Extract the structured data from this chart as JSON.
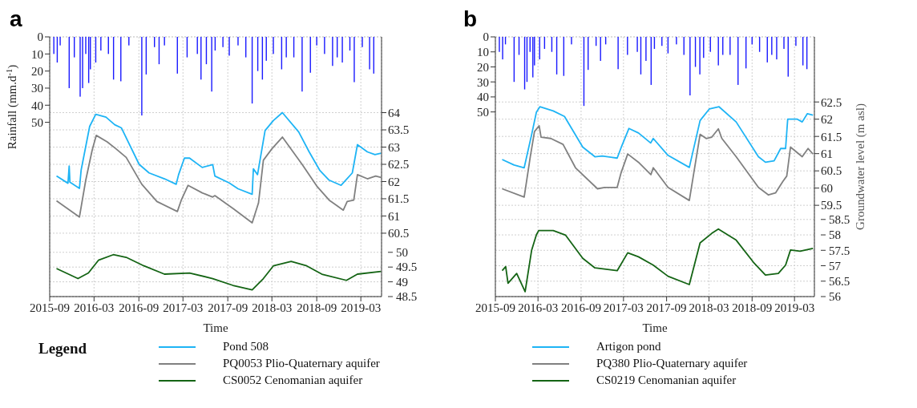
{
  "chart_data": [
    {
      "type": "line",
      "title": "a",
      "xlabel": "Time",
      "ylabel": "Rainfall (mm.d$^{-1}$)",
      "legend_title": "Legend",
      "legend": "bottom",
      "grid": true,
      "xlim": [
        "2015-09-01",
        "2019-05-25"
      ],
      "xticks": [
        "2015-09",
        "2016-03",
        "2016-09",
        "2017-03",
        "2017-09",
        "2018-03",
        "2018-09",
        "2019-03"
      ],
      "ylim": [
        152,
        0
      ],
      "yticks": [
        0,
        10,
        20,
        30,
        40,
        50
      ],
      "y2lim": [
        58.66,
        66.2
      ],
      "y2ticks": [
        60.5,
        61,
        61.5,
        62,
        62.5,
        63,
        63.5,
        64
      ],
      "y3lim": [
        48.5,
        57.3
      ],
      "y3ticks": [
        48.5,
        49,
        49.5,
        50
      ],
      "series": [
        {
          "type": "bar",
          "axis": "y",
          "color": "#1a1aff",
          "x": [
            "2015-09-18",
            "2015-10-02",
            "2015-10-14",
            "2015-11-20",
            "2015-12-11",
            "2016-01-04",
            "2016-01-14",
            "2016-01-27",
            "2016-02-08",
            "2016-02-15",
            "2016-03-08",
            "2016-03-29",
            "2016-04-29",
            "2016-05-20",
            "2016-06-19",
            "2016-07-22",
            "2016-09-13",
            "2016-10-01",
            "2016-11-04",
            "2016-11-23",
            "2016-12-15",
            "2017-02-06",
            "2017-03-18",
            "2017-04-29",
            "2017-05-14",
            "2017-06-05",
            "2017-06-27",
            "2017-07-11",
            "2017-08-12",
            "2017-09-07",
            "2017-10-13",
            "2017-11-14",
            "2017-12-10",
            "2018-01-02",
            "2018-01-21",
            "2018-02-06",
            "2018-03-07",
            "2018-04-10",
            "2018-04-29",
            "2018-05-30",
            "2018-07-03",
            "2018-08-06",
            "2018-09-01",
            "2018-10-03",
            "2018-11-05",
            "2018-11-24",
            "2018-12-15",
            "2019-01-15",
            "2019-02-02",
            "2019-03-07",
            "2019-04-06",
            "2019-04-23"
          ],
          "values": [
            10,
            15,
            5,
            30,
            12,
            35,
            30,
            10,
            27,
            19,
            15,
            8,
            10,
            25,
            26,
            5,
            46,
            22,
            6,
            16,
            5,
            21.5,
            12,
            10,
            25,
            16,
            32,
            8,
            6,
            11,
            5,
            12,
            39,
            20,
            25,
            14,
            10,
            19,
            12,
            12,
            32,
            21,
            5,
            10,
            17,
            12,
            15,
            8,
            26.5,
            6,
            19,
            21.5
          ]
        },
        {
          "name": "Pond 508",
          "axis": "y2",
          "color": "#1eb4f5",
          "x": [
            "2015-09-29",
            "2015-11-15",
            "2015-11-20",
            "2015-11-23",
            "2016-01-01",
            "2016-01-08",
            "2016-02-12",
            "2016-03-08",
            "2016-04-19",
            "2016-05-25",
            "2016-06-21",
            "2016-09-02",
            "2016-10-13",
            "2016-12-15",
            "2017-02-01",
            "2017-02-11",
            "2017-03-07",
            "2017-03-28",
            "2017-05-19",
            "2017-07-01",
            "2017-07-10",
            "2017-09-07",
            "2017-10-13",
            "2017-12-10",
            "2017-12-15",
            "2018-01-01",
            "2018-02-01",
            "2018-03-07",
            "2018-04-13",
            "2018-06-19",
            "2018-08-01",
            "2018-09-13",
            "2018-10-22",
            "2018-12-10",
            "2019-01-25",
            "2019-02-15",
            "2019-03-28",
            "2019-04-28",
            "2019-05-23"
          ],
          "values": [
            62.16,
            61.95,
            62.45,
            61.98,
            61.8,
            62.33,
            63.6,
            63.95,
            63.87,
            63.65,
            63.56,
            62.5,
            62.25,
            62.08,
            61.92,
            62.2,
            62.68,
            62.68,
            62.41,
            62.49,
            62.16,
            61.96,
            61.79,
            61.63,
            62.37,
            62.2,
            63.48,
            63.77,
            64.0,
            63.44,
            62.86,
            62.33,
            62.04,
            61.89,
            62.25,
            63.07,
            62.86,
            62.78,
            62.82
          ]
        },
        {
          "name": "PQ0053 Plio-Quaternary aquifer",
          "axis": "y2",
          "color": "#808080",
          "x": [
            "2015-09-29",
            "2016-01-01",
            "2016-01-27",
            "2016-02-22",
            "2016-03-10",
            "2016-04-24",
            "2016-05-30",
            "2016-07-11",
            "2016-09-13",
            "2016-11-14",
            "2017-02-06",
            "2017-02-22",
            "2017-03-22",
            "2017-05-19",
            "2017-07-01",
            "2017-07-10",
            "2017-09-22",
            "2017-12-10",
            "2018-01-05",
            "2018-01-25",
            "2018-03-01",
            "2018-04-13",
            "2018-07-04",
            "2018-09-01",
            "2018-10-22",
            "2018-12-19",
            "2019-01-04",
            "2019-01-31",
            "2019-02-15",
            "2019-03-28",
            "2019-05-01",
            "2019-05-23"
          ],
          "values": [
            61.44,
            60.97,
            62.04,
            62.9,
            63.34,
            63.15,
            62.95,
            62.7,
            61.92,
            61.42,
            61.13,
            61.46,
            61.89,
            61.67,
            61.55,
            61.59,
            61.22,
            60.8,
            61.38,
            62.62,
            62.95,
            63.29,
            62.49,
            61.87,
            61.46,
            61.17,
            61.42,
            61.46,
            62.2,
            62.08,
            62.16,
            62.12
          ]
        },
        {
          "name": "CS0052 Cenomanian aquifer",
          "axis": "y3",
          "color": "#146414",
          "x": [
            "2015-09-29",
            "2015-12-26",
            "2016-02-07",
            "2016-03-19",
            "2016-05-19",
            "2016-07-11",
            "2016-09-22",
            "2016-12-15",
            "2017-03-28",
            "2017-07-01",
            "2017-09-22",
            "2017-12-10",
            "2018-01-25",
            "2018-03-07",
            "2018-05-19",
            "2018-07-22",
            "2018-09-22",
            "2019-01-01",
            "2019-02-15",
            "2019-05-23"
          ],
          "values": [
            49.45,
            49.11,
            49.3,
            49.73,
            49.92,
            49.83,
            49.54,
            49.26,
            49.3,
            49.11,
            48.88,
            48.73,
            49.11,
            49.54,
            49.69,
            49.54,
            49.26,
            49.05,
            49.26,
            49.35
          ]
        }
      ]
    },
    {
      "type": "line",
      "title": "b",
      "xlabel": "Time",
      "y2label": "Groundwater level (m asl)",
      "legend": "bottom",
      "grid": true,
      "xlim": [
        "2015-09-01",
        "2019-05-25"
      ],
      "xticks": [
        "2015-09",
        "2016-03",
        "2016-09",
        "2017-03",
        "2017-09",
        "2018-03",
        "2018-09",
        "2019-03"
      ],
      "ylim": [
        173,
        0
      ],
      "yticks": [
        0,
        10,
        20,
        30,
        40,
        50
      ],
      "y2lim": [
        56.85,
        64.39
      ],
      "y2ticks": [
        59.5,
        60,
        60.5,
        61,
        61.5,
        62,
        62.5
      ],
      "y3lim": [
        56,
        64.42
      ],
      "y3ticks": [
        56,
        56.5,
        57,
        57.5,
        58,
        58.5
      ],
      "series": [
        {
          "type": "bar",
          "axis": "y",
          "color": "#1a1aff",
          "x": [
            "2015-09-18",
            "2015-10-02",
            "2015-10-14",
            "2015-11-20",
            "2015-12-11",
            "2016-01-04",
            "2016-01-14",
            "2016-01-27",
            "2016-02-08",
            "2016-02-15",
            "2016-03-08",
            "2016-03-29",
            "2016-04-29",
            "2016-05-20",
            "2016-06-19",
            "2016-07-22",
            "2016-09-13",
            "2016-10-01",
            "2016-11-04",
            "2016-11-23",
            "2016-12-15",
            "2017-02-06",
            "2017-03-18",
            "2017-04-29",
            "2017-05-14",
            "2017-06-05",
            "2017-06-27",
            "2017-07-11",
            "2017-08-12",
            "2017-09-07",
            "2017-10-13",
            "2017-11-14",
            "2017-12-10",
            "2018-01-02",
            "2018-01-21",
            "2018-02-06",
            "2018-03-07",
            "2018-04-10",
            "2018-04-29",
            "2018-05-30",
            "2018-07-03",
            "2018-08-06",
            "2018-09-01",
            "2018-10-03",
            "2018-11-05",
            "2018-11-24",
            "2018-12-15",
            "2019-01-15",
            "2019-02-02",
            "2019-03-07",
            "2019-04-06",
            "2019-04-23"
          ],
          "values": [
            10,
            15,
            5,
            30,
            12,
            35,
            30,
            10,
            27,
            19,
            15,
            8,
            10,
            25,
            26,
            5,
            46,
            22,
            6,
            16,
            5,
            21.5,
            12,
            10,
            25,
            16,
            32,
            8,
            6,
            11,
            5,
            12,
            39,
            20,
            25,
            14,
            10,
            19,
            12,
            12,
            32,
            21,
            5,
            10,
            17,
            12,
            15,
            8,
            26.5,
            6,
            19,
            21.5
          ]
        },
        {
          "name": "Artigon pond",
          "axis": "y2",
          "color": "#1eb4f5",
          "x": [
            "2015-09-30",
            "2015-11-20",
            "2016-01-02",
            "2016-02-03",
            "2016-02-23",
            "2016-03-09",
            "2016-05-05",
            "2016-06-22",
            "2016-09-08",
            "2016-10-30",
            "2016-11-30",
            "2017-02-02",
            "2017-02-22",
            "2017-03-24",
            "2017-05-04",
            "2017-06-25",
            "2017-07-06",
            "2017-09-07",
            "2017-12-07",
            "2018-01-22",
            "2018-03-03",
            "2018-04-13",
            "2018-06-25",
            "2018-09-28",
            "2018-10-28",
            "2018-12-04",
            "2019-01-01",
            "2019-01-22",
            "2019-01-31",
            "2019-03-13",
            "2019-04-03",
            "2019-04-25",
            "2019-05-19"
          ],
          "values": [
            60.83,
            60.67,
            60.59,
            61.56,
            62.2,
            62.36,
            62.24,
            62.08,
            61.19,
            60.91,
            60.93,
            60.87,
            61.23,
            61.73,
            61.6,
            61.31,
            61.44,
            60.95,
            60.6,
            61.96,
            62.3,
            62.36,
            61.92,
            60.91,
            60.75,
            60.79,
            61.15,
            61.15,
            62.0,
            62.0,
            61.92,
            62.16,
            62.12
          ]
        },
        {
          "name": "PQ380 Plio-Quaternary aquifer",
          "axis": "y2",
          "color": "#808080",
          "x": [
            "2015-09-30",
            "2016-01-02",
            "2016-01-28",
            "2016-02-15",
            "2016-03-06",
            "2016-03-14",
            "2016-04-25",
            "2016-06-16",
            "2016-08-08",
            "2016-11-10",
            "2016-12-10",
            "2017-02-02",
            "2017-02-18",
            "2017-03-19",
            "2017-05-04",
            "2017-06-26",
            "2017-07-06",
            "2017-09-07",
            "2017-12-07",
            "2018-01-22",
            "2018-02-17",
            "2018-03-13",
            "2018-04-10",
            "2018-04-25",
            "2018-06-25",
            "2018-09-28",
            "2018-11-10",
            "2018-12-10",
            "2019-01-10",
            "2019-01-27",
            "2019-02-12",
            "2019-04-03",
            "2019-04-28",
            "2019-05-19"
          ],
          "values": [
            59.98,
            59.74,
            60.91,
            61.64,
            61.81,
            61.48,
            61.44,
            61.27,
            60.59,
            59.98,
            60.02,
            60.02,
            60.43,
            60.99,
            60.75,
            60.39,
            60.59,
            60.02,
            59.64,
            61.56,
            61.44,
            61.48,
            61.72,
            61.44,
            60.91,
            60.02,
            59.8,
            59.86,
            60.19,
            60.35,
            61.19,
            60.91,
            61.15,
            60.99
          ]
        },
        {
          "name": "CS0219 Cenomanian aquifer",
          "axis": "y3",
          "color": "#146414",
          "x": [
            "2015-09-30",
            "2015-10-15",
            "2015-10-25",
            "2015-12-01",
            "2016-01-06",
            "2016-02-03",
            "2016-02-23",
            "2016-03-04",
            "2016-05-05",
            "2016-06-27",
            "2016-09-08",
            "2016-10-30",
            "2017-02-02",
            "2017-03-19",
            "2017-05-04",
            "2017-07-06",
            "2017-09-07",
            "2017-12-07",
            "2018-01-22",
            "2018-03-13",
            "2018-04-10",
            "2018-06-25",
            "2018-09-07",
            "2018-10-28",
            "2018-12-22",
            "2019-01-22",
            "2019-02-12",
            "2019-03-25",
            "2019-05-19"
          ],
          "values": [
            56.84,
            56.97,
            56.43,
            56.75,
            56.16,
            57.51,
            58.0,
            58.14,
            58.14,
            57.99,
            57.24,
            56.93,
            56.84,
            57.42,
            57.29,
            57.02,
            56.66,
            56.39,
            57.74,
            58.05,
            58.19,
            57.83,
            57.11,
            56.7,
            56.75,
            57.02,
            57.51,
            57.47,
            57.56
          ]
        }
      ]
    }
  ]
}
